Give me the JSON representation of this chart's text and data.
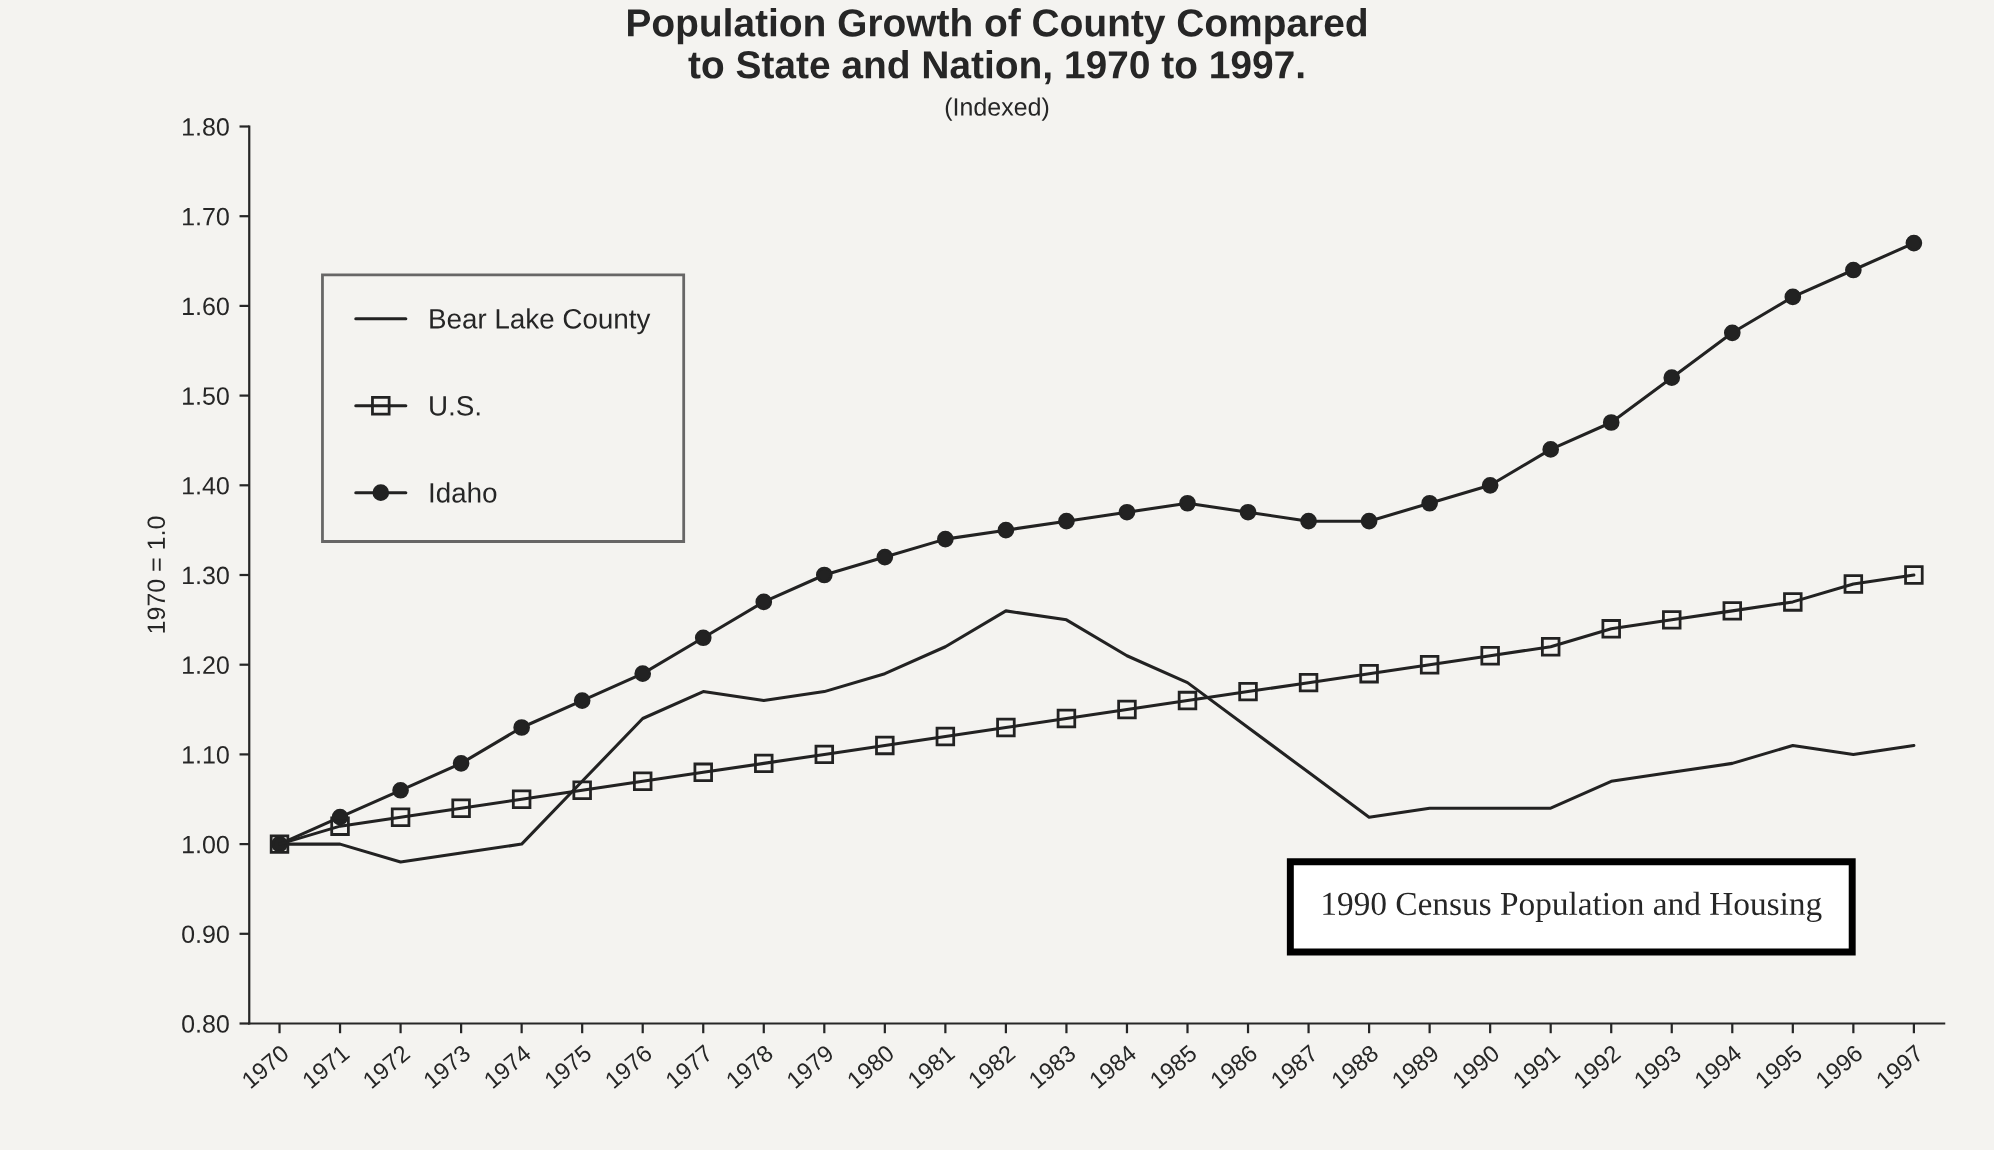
{
  "chart_data": {
    "type": "line",
    "title": "Population Growth of County Compared\nto State and Nation, 1970 to 1997.",
    "subtitle": "(Indexed)",
    "ylabel": "1970 = 1.0",
    "categories": [
      "1970",
      "1971",
      "1972",
      "1973",
      "1974",
      "1975",
      "1976",
      "1977",
      "1978",
      "1979",
      "1980",
      "1981",
      "1982",
      "1983",
      "1984",
      "1985",
      "1986",
      "1987",
      "1988",
      "1989",
      "1990",
      "1991",
      "1992",
      "1993",
      "1994",
      "1995",
      "1996",
      "1997"
    ],
    "series": [
      {
        "name": "Bear Lake County",
        "color": "#222222",
        "marker": "none",
        "values": [
          1.0,
          1.0,
          0.98,
          0.99,
          1.0,
          1.07,
          1.14,
          1.17,
          1.16,
          1.17,
          1.19,
          1.22,
          1.26,
          1.25,
          1.21,
          1.18,
          1.13,
          1.08,
          1.03,
          1.04,
          1.04,
          1.04,
          1.07,
          1.08,
          1.09,
          1.11,
          1.1,
          1.11
        ]
      },
      {
        "name": "U.S.",
        "color": "#222222",
        "marker": "square",
        "values": [
          1.0,
          1.02,
          1.03,
          1.04,
          1.05,
          1.06,
          1.07,
          1.08,
          1.09,
          1.1,
          1.11,
          1.12,
          1.13,
          1.14,
          1.15,
          1.16,
          1.17,
          1.18,
          1.19,
          1.2,
          1.21,
          1.22,
          1.24,
          1.25,
          1.26,
          1.27,
          1.29,
          1.3
        ]
      },
      {
        "name": "Idaho",
        "color": "#222222",
        "marker": "circle",
        "values": [
          1.0,
          1.03,
          1.06,
          1.09,
          1.13,
          1.16,
          1.19,
          1.23,
          1.27,
          1.3,
          1.32,
          1.34,
          1.35,
          1.36,
          1.37,
          1.38,
          1.37,
          1.36,
          1.36,
          1.38,
          1.4,
          1.44,
          1.47,
          1.52,
          1.57,
          1.61,
          1.64,
          1.67
        ]
      }
    ],
    "ylim": [
      0.8,
      1.8
    ],
    "yticks": [
      {
        "value": 0.8,
        "label": "0.80"
      },
      {
        "value": 0.9,
        "label": "0.90"
      },
      {
        "value": 1.0,
        "label": "1.00"
      },
      {
        "value": 1.1,
        "label": "1.10"
      },
      {
        "value": 1.2,
        "label": "1.20"
      },
      {
        "value": 1.3,
        "label": "1.30"
      },
      {
        "value": 1.4,
        "label": "1.40"
      },
      {
        "value": 1.5,
        "label": "1.50"
      },
      {
        "value": 1.6,
        "label": "1.60"
      },
      {
        "value": 1.7,
        "label": "1.70"
      },
      {
        "value": 1.8,
        "label": "1.80"
      }
    ],
    "grid": false,
    "legend": "top left",
    "annotations": [
      "1990 Census Population and Housing"
    ]
  }
}
